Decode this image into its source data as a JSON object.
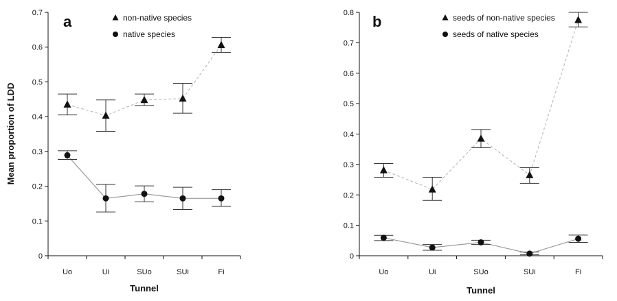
{
  "chart_data": [
    {
      "type": "line",
      "panel_label": "a",
      "categories": [
        "Uo",
        "Ui",
        "SUo",
        "SUi",
        "Fi"
      ],
      "xlabel": "Tunnel",
      "ylabel": "Mean proportion of LDD",
      "ylim": [
        0,
        0.7
      ],
      "yticks": [
        "0",
        "0.1",
        "0.2",
        "0.3",
        "0.4",
        "0.5",
        "0.6",
        "0.7"
      ],
      "legend_position": "top",
      "error_bars": true,
      "series": [
        {
          "name": "non-native species",
          "marker": "triangle",
          "line_style": "dashed",
          "line_color": "#bdbdbd",
          "values": [
            0.435,
            0.403,
            0.448,
            0.452,
            0.606
          ],
          "err_low": [
            0.405,
            0.358,
            0.432,
            0.41,
            0.585
          ],
          "err_high": [
            0.465,
            0.448,
            0.465,
            0.496,
            0.628
          ]
        },
        {
          "name": "native species",
          "marker": "circle",
          "line_style": "solid",
          "line_color": "#9a9a9a",
          "values": [
            0.289,
            0.165,
            0.178,
            0.165,
            0.165
          ],
          "err_low": [
            0.277,
            0.126,
            0.155,
            0.133,
            0.142
          ],
          "err_high": [
            0.302,
            0.205,
            0.201,
            0.197,
            0.19
          ]
        }
      ]
    },
    {
      "type": "line",
      "panel_label": "b",
      "categories": [
        "Uo",
        "Ui",
        "SUo",
        "SUi",
        "Fi"
      ],
      "xlabel": "Tunnel",
      "ylabel": "",
      "ylim": [
        0,
        0.8
      ],
      "yticks": [
        "0",
        "0.1",
        "0.2",
        "0.3",
        "0.4",
        "0.5",
        "0.6",
        "0.7",
        "0.8"
      ],
      "legend_position": "top",
      "error_bars": true,
      "series": [
        {
          "name": "seeds of non-native species",
          "marker": "triangle",
          "line_style": "dashed",
          "line_color": "#bdbdbd",
          "values": [
            0.281,
            0.218,
            0.385,
            0.265,
            0.775
          ],
          "err_low": [
            0.258,
            0.182,
            0.355,
            0.238,
            0.752
          ],
          "err_high": [
            0.303,
            0.258,
            0.415,
            0.29,
            0.8
          ]
        },
        {
          "name": "seeds of native species",
          "marker": "circle",
          "line_style": "solid",
          "line_color": "#9a9a9a",
          "values": [
            0.059,
            0.027,
            0.044,
            0.007,
            0.056
          ],
          "err_low": [
            0.05,
            0.018,
            0.037,
            0.003,
            0.044
          ],
          "err_high": [
            0.067,
            0.037,
            0.051,
            0.012,
            0.068
          ]
        }
      ]
    }
  ]
}
